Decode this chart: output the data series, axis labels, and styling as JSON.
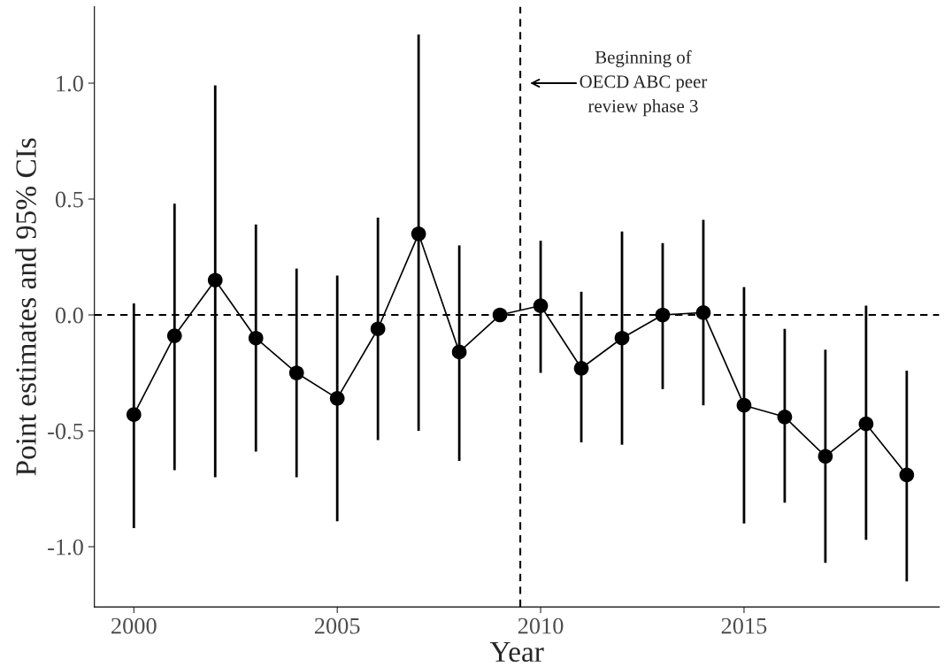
{
  "chart_data": {
    "type": "line",
    "xlabel": "Year",
    "ylabel": "Point estimates and 95% CIs",
    "x": [
      2000,
      2001,
      2002,
      2003,
      2004,
      2005,
      2006,
      2007,
      2008,
      2009,
      2010,
      2011,
      2012,
      2013,
      2014,
      2015,
      2016,
      2017,
      2018,
      2019
    ],
    "series": [
      {
        "color": "#000000",
        "values": [
          -0.43,
          -0.09,
          0.15,
          -0.1,
          -0.25,
          -0.36,
          -0.06,
          0.35,
          -0.16,
          0.0,
          0.04,
          -0.23,
          -0.1,
          0.0,
          0.01,
          -0.39,
          -0.44,
          -0.61,
          -0.47,
          -0.69
        ],
        "errors": [
          [
            -0.92,
            0.05
          ],
          [
            -0.67,
            0.48
          ],
          [
            -0.7,
            0.99
          ],
          [
            -0.59,
            0.39
          ],
          [
            -0.7,
            0.2
          ],
          [
            -0.89,
            0.17
          ],
          [
            -0.54,
            0.42
          ],
          [
            -0.5,
            1.21
          ],
          [
            -0.63,
            0.3
          ],
          null,
          [
            -0.25,
            0.32
          ],
          [
            -0.55,
            0.1
          ],
          [
            -0.56,
            0.36
          ],
          [
            -0.32,
            0.31
          ],
          [
            -0.39,
            0.41
          ],
          [
            -0.9,
            0.12
          ],
          [
            -0.81,
            -0.06
          ],
          [
            -1.07,
            -0.15
          ],
          [
            -0.97,
            0.04
          ],
          [
            -1.15,
            -0.24
          ]
        ]
      }
    ],
    "marker": "circle",
    "line_style": "solid",
    "xlim": [
      1999.03,
      2019.8
    ],
    "xticks": [
      2000,
      2005,
      2010,
      2015
    ],
    "ylim": [
      -1.26,
      1.33
    ],
    "yticks": [
      {
        "value": -1.0,
        "label": "-1.0"
      },
      {
        "value": -0.5,
        "label": "-0.5"
      },
      {
        "value": 0.0,
        "label": "0.0"
      },
      {
        "value": 0.5,
        "label": "0.5"
      },
      {
        "value": 1.0,
        "label": "1.0"
      }
    ],
    "ref_lines": [
      {
        "axis": "y",
        "value": 0,
        "line_style": "dashed",
        "color": "#000000"
      },
      {
        "axis": "x",
        "value": 2009.5,
        "line_style": "dashed",
        "color": "#000000",
        "label": "Beginning of\nOECD ABC peer\nreview phase 3"
      }
    ],
    "grid": false,
    "legend": false
  }
}
